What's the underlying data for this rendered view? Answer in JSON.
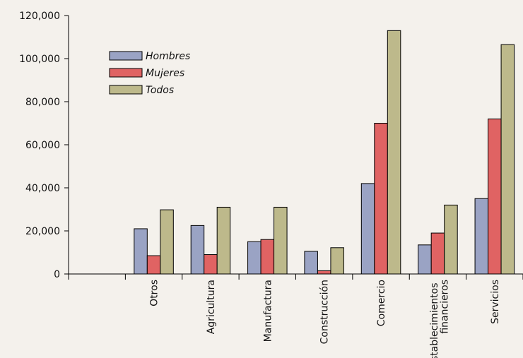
{
  "chart_data": {
    "type": "bar",
    "categories": [
      null,
      "Otros",
      "Agricultura",
      "Manufactura",
      "Construcción",
      "Comercio",
      "Establecimientos financieros",
      "Servicios"
    ],
    "series": [
      {
        "name": "Hombres",
        "color": "#9aa3c4",
        "values": [
          null,
          21000,
          22500,
          15000,
          10500,
          42000,
          13500,
          35000
        ]
      },
      {
        "name": "Mujeres",
        "color": "#e06363",
        "values": [
          null,
          8500,
          9000,
          16000,
          1500,
          70000,
          19000,
          72000
        ]
      },
      {
        "name": "Todos",
        "color": "#bdb98b",
        "values": [
          null,
          29800,
          31000,
          31000,
          12200,
          113000,
          32000,
          106500
        ]
      }
    ],
    "ylim": [
      0,
      120000
    ],
    "yticks": [
      0,
      {
        "value": 20000,
        "label": "20,000"
      },
      {
        "value": 40000,
        "label": "40,000"
      },
      {
        "value": 60000,
        "label": "60,000"
      },
      {
        "value": 80000,
        "label": "80,000"
      },
      {
        "value": 100000,
        "label": "100,000"
      },
      {
        "value": 120000,
        "label": "120,000"
      }
    ],
    "grid": false
  }
}
